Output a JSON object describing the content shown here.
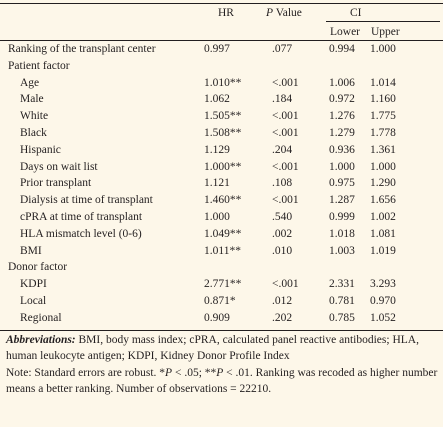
{
  "table": {
    "header": {
      "hr": "HR",
      "p_value": [
        "P",
        " Value"
      ],
      "ci": "CI",
      "lower": "Lower",
      "upper": "Upper"
    },
    "top_rows": [
      [
        "Ranking of the transplant center",
        "0.997",
        ".077",
        "0.994",
        "1.000"
      ]
    ],
    "sections": [
      {
        "title": "Patient factor",
        "rows": [
          [
            "Age",
            "1.010**",
            "<.001",
            "1.006",
            "1.014"
          ],
          [
            "Male",
            "1.062",
            ".184",
            "0.972",
            "1.160"
          ],
          [
            "White",
            "1.505**",
            "<.001",
            "1.276",
            "1.775"
          ],
          [
            "Black",
            "1.508**",
            "<.001",
            "1.279",
            "1.778"
          ],
          [
            "Hispanic",
            "1.129",
            ".204",
            "0.936",
            "1.361"
          ],
          [
            "Days on wait list",
            "1.000**",
            "<.001",
            "1.000",
            "1.000"
          ],
          [
            "Prior transplant",
            "1.121",
            ".108",
            "0.975",
            "1.290"
          ],
          [
            "Dialysis at time of transplant",
            "1.460**",
            "<.001",
            "1.287",
            "1.656"
          ],
          [
            "cPRA at time of transplant",
            "1.000",
            ".540",
            "0.999",
            "1.002"
          ],
          [
            "HLA mismatch level (0-6)",
            "1.049**",
            ".002",
            "1.018",
            "1.081"
          ],
          [
            "BMI",
            "1.011**",
            ".010",
            "1.003",
            "1.019"
          ]
        ]
      },
      {
        "title": "Donor factor",
        "rows": [
          [
            "KDPI",
            "2.771**",
            "<.001",
            "2.331",
            "3.293"
          ],
          [
            "Local",
            "0.871*",
            ".012",
            "0.781",
            "0.970"
          ],
          [
            "Regional",
            "0.909",
            ".202",
            "0.785",
            "1.052"
          ]
        ]
      }
    ]
  },
  "footnotes": {
    "abbreviations": [
      "Abbreviations:",
      " BMI, body mass index; cPRA, calculated panel reactive antibodies; HLA, human leukocyte antigen; KDPI, Kidney Donor Profile Index"
    ],
    "note": [
      "Note: Standard errors are robust. *",
      "P",
      " < .05; **",
      "P",
      " < .01. Ranking was recoded as higher number means a better ranking. Number of observations = 22210."
    ]
  }
}
